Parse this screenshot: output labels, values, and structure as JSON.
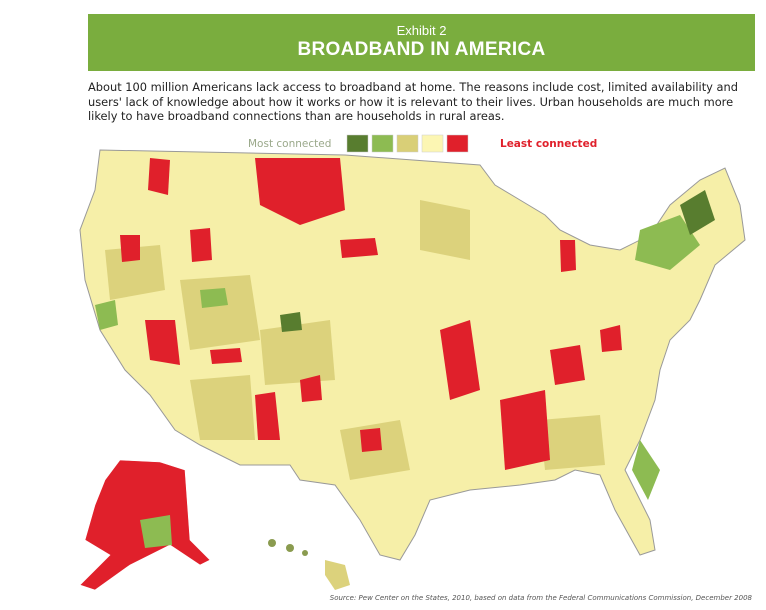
{
  "header": {
    "exhibit": "Exhibit 2",
    "title": "BROADBAND IN AMERICA"
  },
  "description": "About 100 million Americans lack access to broadband at home. The reasons include cost, limited availability and users' lack of knowledge about how it works or how it is relevant to their lives. Urban households are much more likely to have broadband connections than are households in rural areas.",
  "legend": {
    "most": "Most connected",
    "least": "Least connected",
    "colors": [
      "#587d2f",
      "#8dbb52",
      "#d9cf77",
      "#fcf6b3",
      "#e0202b"
    ]
  },
  "source": "Source: Pew Center on the States, 2010, based on data from the Federal Communications Commission, December 2008"
}
